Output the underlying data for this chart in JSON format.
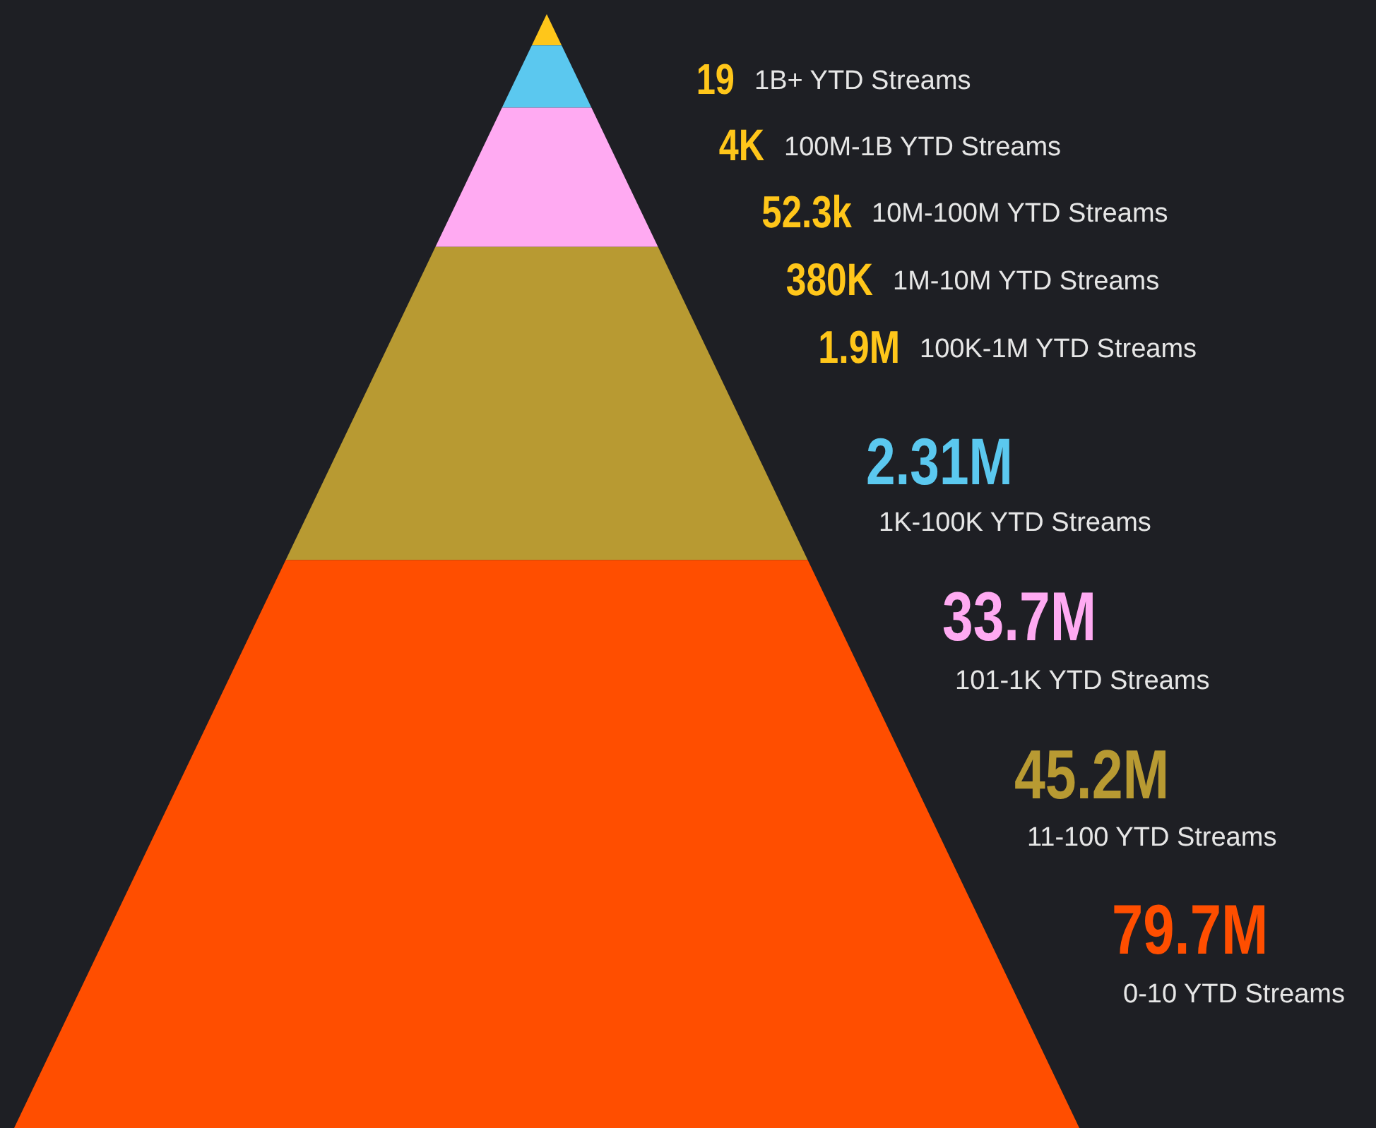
{
  "chart_data": {
    "type": "other",
    "categories": [
      "1B+ YTD Streams",
      "100M-1B YTD Streams",
      "10M-100M YTD Streams",
      "1M-10M YTD Streams",
      "100K-1M YTD Streams",
      "1K-100K YTD Streams",
      "101-1K YTD Streams",
      "11-100 YTD Streams",
      "0-10 YTD Streams"
    ],
    "values": [
      19,
      4000,
      52300,
      380000,
      1900000,
      2310000,
      33700000,
      45200000,
      79700000
    ],
    "value_labels": [
      "19",
      "4K",
      "52.3k",
      "380K",
      "1.9M",
      "2.31M",
      "33.7M",
      "45.2M",
      "79.7M"
    ],
    "colors": [
      "#ffc61a",
      "#ffc61a",
      "#ffc61a",
      "#ffc61a",
      "#ffc61a",
      "#5bc8ef",
      "#ffaaf2",
      "#b89a32",
      "#ff4e00"
    ]
  }
}
